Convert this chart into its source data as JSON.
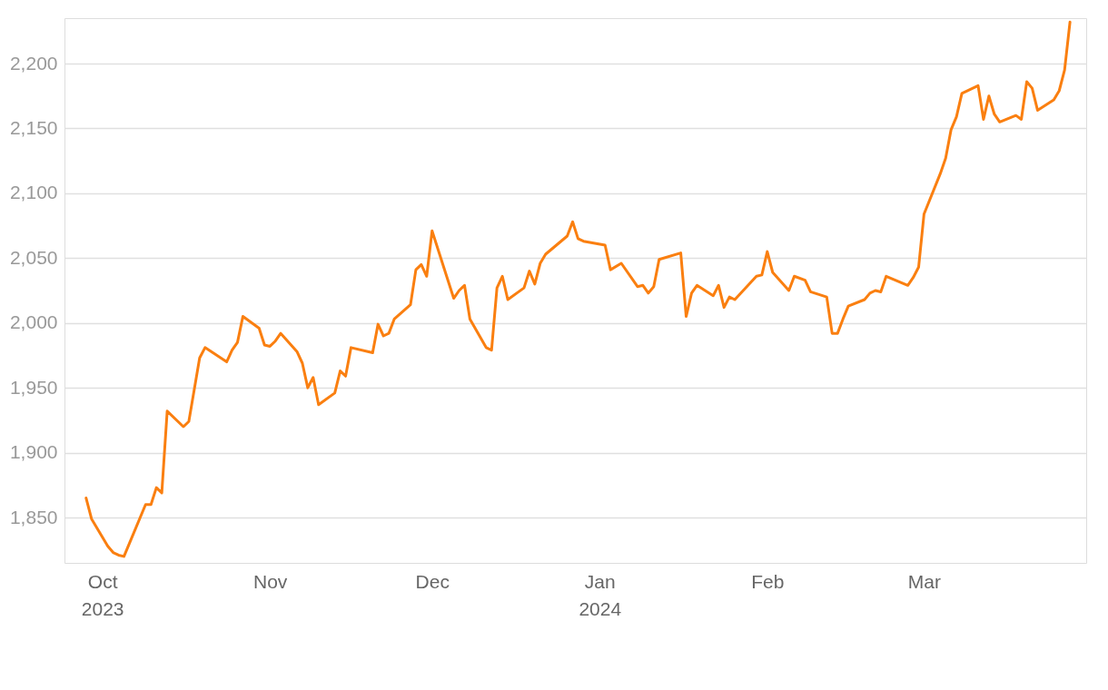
{
  "chart_data": {
    "type": "line",
    "x": [
      "2023-09-28",
      "2023-09-29",
      "2023-10-02",
      "2023-10-03",
      "2023-10-04",
      "2023-10-05",
      "2023-10-06",
      "2023-10-09",
      "2023-10-10",
      "2023-10-11",
      "2023-10-12",
      "2023-10-13",
      "2023-10-16",
      "2023-10-17",
      "2023-10-19",
      "2023-10-20",
      "2023-10-24",
      "2023-10-25",
      "2023-10-26",
      "2023-10-27",
      "2023-10-30",
      "2023-10-31",
      "2023-11-01",
      "2023-11-02",
      "2023-11-03",
      "2023-11-06",
      "2023-11-07",
      "2023-11-08",
      "2023-11-09",
      "2023-11-10",
      "2023-11-13",
      "2023-11-14",
      "2023-11-15",
      "2023-11-16",
      "2023-11-20",
      "2023-11-21",
      "2023-11-22",
      "2023-11-23",
      "2023-11-24",
      "2023-11-27",
      "2023-11-28",
      "2023-11-29",
      "2023-11-30",
      "2023-12-01",
      "2023-12-04",
      "2023-12-05",
      "2023-12-06",
      "2023-12-07",
      "2023-12-08",
      "2023-12-11",
      "2023-12-12",
      "2023-12-13",
      "2023-12-14",
      "2023-12-15",
      "2023-12-18",
      "2023-12-19",
      "2023-12-20",
      "2023-12-21",
      "2023-12-22",
      "2023-12-26",
      "2023-12-27",
      "2023-12-28",
      "2023-12-29",
      "2024-01-02",
      "2024-01-03",
      "2024-01-05",
      "2024-01-08",
      "2024-01-09",
      "2024-01-10",
      "2024-01-11",
      "2024-01-12",
      "2024-01-16",
      "2024-01-17",
      "2024-01-18",
      "2024-01-19",
      "2024-01-22",
      "2024-01-23",
      "2024-01-24",
      "2024-01-25",
      "2024-01-26",
      "2024-01-30",
      "2024-01-31",
      "2024-02-01",
      "2024-02-02",
      "2024-02-05",
      "2024-02-06",
      "2024-02-08",
      "2024-02-09",
      "2024-02-12",
      "2024-02-13",
      "2024-02-14",
      "2024-02-15",
      "2024-02-16",
      "2024-02-19",
      "2024-02-20",
      "2024-02-21",
      "2024-02-22",
      "2024-02-23",
      "2024-02-27",
      "2024-02-28",
      "2024-02-29",
      "2024-03-01",
      "2024-03-04",
      "2024-03-05",
      "2024-03-06",
      "2024-03-07",
      "2024-03-08",
      "2024-03-11",
      "2024-03-12",
      "2024-03-13",
      "2024-03-14",
      "2024-03-15",
      "2024-03-18",
      "2024-03-19",
      "2024-03-20",
      "2024-03-21",
      "2024-03-22",
      "2024-03-25",
      "2024-03-26",
      "2024-03-27",
      "2024-03-28"
    ],
    "series": [
      {
        "color": "#fa7f10",
        "values": [
          1865,
          1849,
          1828,
          1823,
          1821,
          1820,
          1830,
          1860,
          1860,
          1873,
          1869,
          1932,
          1920,
          1924,
          1973,
          1981,
          1970,
          1979,
          1985,
          2005,
          1996,
          1983,
          1982,
          1986,
          1992,
          1978,
          1969,
          1950,
          1958,
          1937,
          1946,
          1963,
          1959,
          1981,
          1977,
          1999,
          1990,
          1992,
          2003,
          2014,
          2041,
          2045,
          2036,
          2071,
          2032,
          2019,
          2025,
          2029,
          2003,
          1981,
          1979,
          2027,
          2036,
          2018,
          2027,
          2040,
          2030,
          2046,
          2053,
          2067,
          2078,
          2065,
          2063,
          2060,
          2041,
          2046,
          2028,
          2029,
          2023,
          2028,
          2049,
          2054,
          2005,
          2023,
          2029,
          2021,
          2029,
          2012,
          2020,
          2018,
          2036,
          2037,
          2055,
          2039,
          2025,
          2036,
          2033,
          2024,
          2020,
          1992,
          1992,
          2003,
          2013,
          2018,
          2023,
          2025,
          2024,
          2036,
          2029,
          2035,
          2043,
          2084,
          2115,
          2127,
          2149,
          2159,
          2177,
          2183,
          2157,
          2175,
          2161,
          2155,
          2160,
          2157,
          2186,
          2181,
          2164,
          2172,
          2179,
          2195,
          2232
        ]
      }
    ],
    "xlim": [
      "2023-09-24",
      "2024-03-31"
    ],
    "xticks": [
      {
        "value": "2023-10-01",
        "label": "Oct 2023"
      },
      {
        "value": "2023-11-01",
        "label": "Nov"
      },
      {
        "value": "2023-12-01",
        "label": "Dec"
      },
      {
        "value": "2024-01-01",
        "label": "Jan 2024"
      },
      {
        "value": "2024-02-01",
        "label": "Feb"
      },
      {
        "value": "2024-03-01",
        "label": "Mar"
      }
    ],
    "ylim": [
      1815,
      2235
    ],
    "yticks": [
      {
        "value": 1850,
        "label": "1,850"
      },
      {
        "value": 1900,
        "label": "1,900"
      },
      {
        "value": 1950,
        "label": "1,950"
      },
      {
        "value": 2000,
        "label": "2,000"
      },
      {
        "value": 2050,
        "label": "2,050"
      },
      {
        "value": 2100,
        "label": "2,100"
      },
      {
        "value": 2150,
        "label": "2,150"
      },
      {
        "value": 2200,
        "label": "2,200"
      }
    ],
    "grid": "y",
    "line_style": "solid"
  }
}
